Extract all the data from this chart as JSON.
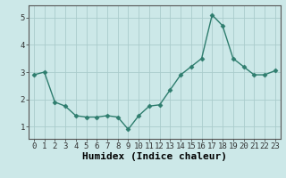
{
  "x": [
    0,
    1,
    2,
    3,
    4,
    5,
    6,
    7,
    8,
    9,
    10,
    11,
    12,
    13,
    14,
    15,
    16,
    17,
    18,
    19,
    20,
    21,
    22,
    23
  ],
  "y": [
    2.9,
    3.0,
    1.9,
    1.75,
    1.4,
    1.35,
    1.35,
    1.4,
    1.35,
    0.9,
    1.4,
    1.75,
    1.8,
    2.35,
    2.9,
    3.2,
    3.5,
    5.1,
    4.7,
    3.5,
    3.2,
    2.9,
    2.9,
    3.05
  ],
  "line_color": "#2e7d6e",
  "marker": "D",
  "marker_size": 2.5,
  "bg_color": "#cce8e8",
  "grid_color": "#aacccc",
  "xlabel": "Humidex (Indice chaleur)",
  "xlabel_fontsize": 8,
  "xlim": [
    -0.5,
    23.5
  ],
  "ylim": [
    0.55,
    5.45
  ],
  "yticks": [
    1,
    2,
    3,
    4,
    5
  ],
  "xticks": [
    0,
    1,
    2,
    3,
    4,
    5,
    6,
    7,
    8,
    9,
    10,
    11,
    12,
    13,
    14,
    15,
    16,
    17,
    18,
    19,
    20,
    21,
    22,
    23
  ],
  "tick_labelsize": 6.5,
  "linewidth": 1.0,
  "spine_color": "#555555"
}
